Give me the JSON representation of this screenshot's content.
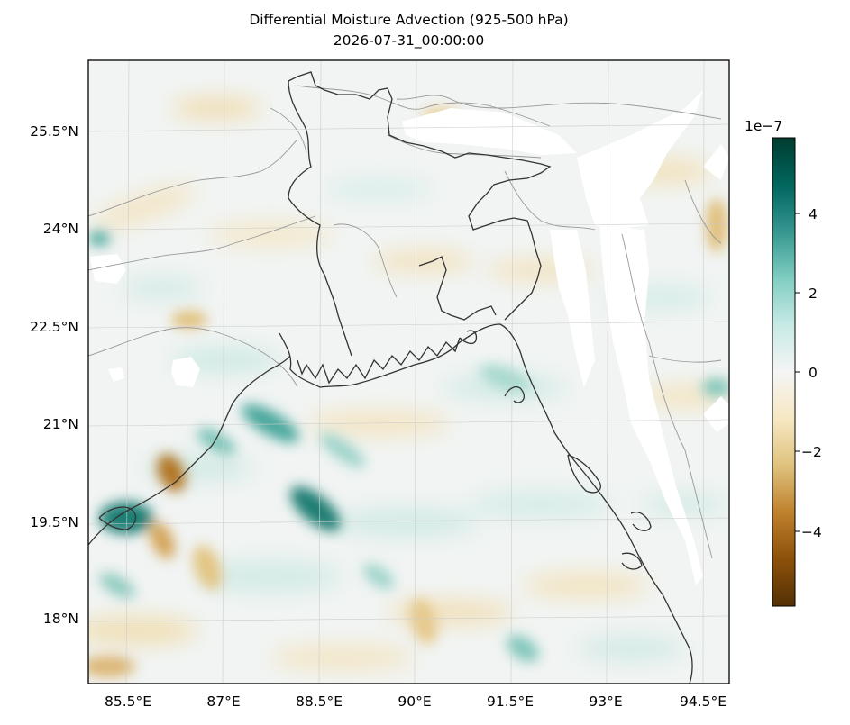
{
  "title": "Differential Moisture Advection (925-500 hPa)",
  "timestamp": "2026-07-31_00:00:00",
  "map": {
    "lat_labels": [
      "25.5°N",
      "24°N",
      "22.5°N",
      "21°N",
      "19.5°N",
      "18°N"
    ],
    "lon_labels": [
      "85.5°E",
      "87°E",
      "88.5°E",
      "90°E",
      "91.5°E",
      "93°E",
      "94.5°E"
    ],
    "lat_range": [
      16.95,
      26.6
    ],
    "lon_range": [
      84.85,
      94.85
    ]
  },
  "colorbar": {
    "colormap": "BrBG",
    "offset_label": "1e−7",
    "tick_labels": [
      "4",
      "2",
      "0",
      "−2",
      "−4"
    ],
    "range": [
      -5.8,
      5.8
    ],
    "colors": [
      "#543005",
      "#8c510a",
      "#bf812d",
      "#dfc27d",
      "#f6e8c3",
      "#f5f5f5",
      "#c7eae5",
      "#80cdc1",
      "#35978f",
      "#01665e",
      "#003c30"
    ]
  },
  "features": {
    "coastline_color": "#333333",
    "border_color": "#999999",
    "gridline_color": "#cccccc",
    "missing_color": "#ffffff"
  }
}
